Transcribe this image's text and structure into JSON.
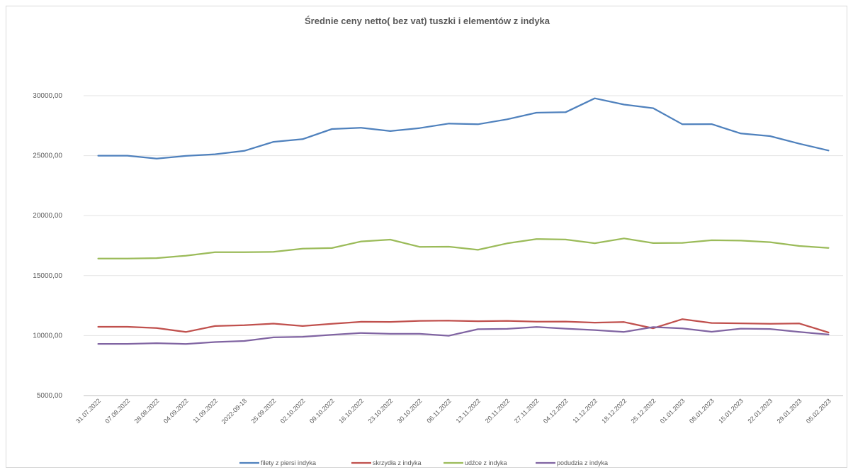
{
  "chart_data": {
    "type": "line",
    "title": "Średnie ceny netto( bez vat) tuszki i elementów z indyka",
    "xlabel": "",
    "ylabel": "",
    "ylim": [
      5000,
      32500
    ],
    "yticks": [
      "5000,00",
      "10000,00",
      "15000,00",
      "20000,00",
      "25000,00",
      "30000,00"
    ],
    "grid": "horizontal",
    "legend": "bottom",
    "categories": [
      "31.07.2022",
      "07.08.2022",
      "28.08.2022",
      "04.09.2022",
      "11.09.2022",
      "2022-09-18",
      "25.09.2022",
      "02.10.2022",
      "09.10.2022",
      "16.10.2022",
      "23.10.2022",
      "30.10.2022",
      "06.11.2022",
      "13.11.2022",
      "20.11.2022",
      "27.11.2022",
      "04.12.2022",
      "11.12.2022",
      "18.12.2022",
      "25.12.2022",
      "01.01.2023",
      "08.01.2023",
      "15.01.2023",
      "22.01.2023",
      "29.01.2023",
      "05.02.2023"
    ],
    "series": [
      {
        "name": "filety z piersi indyka",
        "color": "#4f81bd",
        "values": [
          25000,
          25000,
          24750,
          24980,
          25120,
          25400,
          26150,
          26380,
          27220,
          27330,
          27050,
          27300,
          27680,
          27620,
          28030,
          28580,
          28620,
          29780,
          29260,
          28960,
          27620,
          27630,
          26850,
          26630,
          26000,
          25430
        ]
      },
      {
        "name": "skrzydła z indyka",
        "color": "#c0504d",
        "values": [
          10730,
          10730,
          10630,
          10300,
          10800,
          10870,
          11000,
          10800,
          10980,
          11150,
          11140,
          11230,
          11250,
          11200,
          11230,
          11160,
          11170,
          11080,
          11130,
          10610,
          11370,
          11050,
          11020,
          10980,
          11010,
          10260
        ]
      },
      {
        "name": "udźce z indyka",
        "color": "#9bbb59",
        "values": [
          16420,
          16420,
          16460,
          16660,
          16950,
          16950,
          16980,
          17250,
          17300,
          17850,
          18000,
          17400,
          17410,
          17150,
          17690,
          18050,
          18010,
          17700,
          18100,
          17710,
          17730,
          17950,
          17920,
          17790,
          17470,
          17310
        ]
      },
      {
        "name": "podudzia z indyka",
        "color": "#8064a2",
        "values": [
          9310,
          9310,
          9370,
          9300,
          9460,
          9550,
          9850,
          9900,
          10070,
          10220,
          10150,
          10150,
          9990,
          10530,
          10560,
          10720,
          10580,
          10460,
          10310,
          10710,
          10600,
          10320,
          10580,
          10550,
          10300,
          10090
        ]
      }
    ]
  }
}
